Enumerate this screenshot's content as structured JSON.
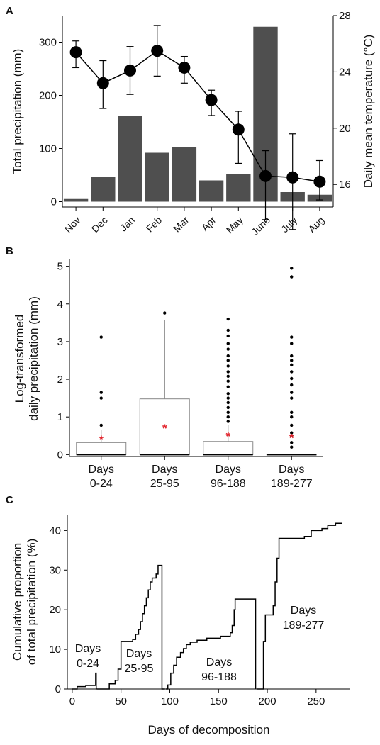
{
  "panels": {
    "a": {
      "letter": "A"
    },
    "b": {
      "letter": "B"
    },
    "c": {
      "letter": "C"
    }
  },
  "chart_data": [
    {
      "panel": "A",
      "type": "bar+line",
      "categories": [
        "Nov",
        "Dec",
        "Jan",
        "Feb",
        "Mar",
        "Apr",
        "May",
        "June",
        "July",
        "Aug"
      ],
      "bars": {
        "values": [
          5,
          47,
          162,
          92,
          102,
          40,
          52,
          329,
          18,
          13
        ],
        "color": "#4f4f4f"
      },
      "line": {
        "values": [
          25.4,
          23.2,
          24.1,
          25.5,
          24.3,
          22.0,
          19.9,
          16.6,
          16.5,
          16.2
        ],
        "err_low": [
          24.3,
          21.4,
          22.4,
          23.7,
          23.2,
          20.9,
          17.5,
          13.5,
          12.8,
          14.9
        ],
        "err_high": [
          26.2,
          24.8,
          25.8,
          27.3,
          25.1,
          22.7,
          21.2,
          18.4,
          19.6,
          17.7
        ],
        "color": "#000000"
      },
      "ylabel_left": "Total precipitation (mm)",
      "ylabel_right": "Daily mean temperature (°C)",
      "yticks_left": [
        0,
        100,
        200,
        300
      ],
      "yticks_right": [
        16,
        20,
        24,
        28
      ],
      "ylim_left": [
        -10,
        350
      ],
      "ylim_right": [
        14.4,
        28
      ]
    },
    {
      "panel": "B",
      "type": "box",
      "categories": [
        [
          "Days",
          "0-24"
        ],
        [
          "Days",
          "25-95"
        ],
        [
          "Days",
          "96-188"
        ],
        [
          "Days",
          "189-277"
        ]
      ],
      "boxes": [
        {
          "q1": 0,
          "median": 0,
          "q3": 0.32,
          "whisker_low": 0,
          "whisker_high": 0.65,
          "mean": 0.4,
          "outliers": [
            0.78,
            1.5,
            1.65,
            3.12
          ]
        },
        {
          "q1": 0,
          "median": 0,
          "q3": 1.48,
          "whisker_low": 0,
          "whisker_high": 3.57,
          "mean": 0.7,
          "outliers": [
            3.76
          ]
        },
        {
          "q1": 0,
          "median": 0,
          "q3": 0.35,
          "whisker_low": 0,
          "whisker_high": 0.78,
          "mean": 0.5,
          "outliers": [
            0.88,
            1.0,
            1.12,
            1.25,
            1.38,
            1.5,
            1.62,
            1.8,
            1.95,
            2.08,
            2.2,
            2.35,
            2.5,
            2.62,
            2.8,
            2.95,
            3.15,
            3.3,
            3.6
          ]
        },
        {
          "q1": 0,
          "median": 0,
          "q3": 0,
          "whisker_low": 0,
          "whisker_high": 0,
          "mean": 0.45,
          "outliers": [
            0.2,
            0.32,
            0.5,
            0.58,
            0.78,
            1.0,
            1.12,
            1.5,
            1.65,
            1.85,
            2.02,
            2.2,
            2.38,
            2.5,
            2.62,
            2.95,
            3.12,
            4.72,
            4.95
          ]
        }
      ],
      "ylabel_line1": "Log-transformed",
      "ylabel_line2": "daily precipitation (mm)",
      "yticks": [
        0,
        1,
        2,
        3,
        4,
        5
      ],
      "ylim": [
        -0.05,
        5.2
      ],
      "mean_marker": "*",
      "mean_color": "#e3262e"
    },
    {
      "panel": "C",
      "type": "line",
      "xlabel": "Days of decomposition",
      "ylabel_line1": "Cumulative proportion",
      "ylabel_line2": "of total precipitation (%)",
      "xticks": [
        0,
        50,
        100,
        150,
        200,
        250
      ],
      "yticks": [
        0,
        10,
        20,
        30,
        40
      ],
      "xlim": [
        -5,
        285
      ],
      "ylim": [
        0,
        44
      ],
      "series": [
        {
          "points": [
            [
              0,
              0
            ],
            [
              5,
              0
            ],
            [
              5,
              0.6
            ],
            [
              14,
              0.6
            ],
            [
              14,
              0.9
            ],
            [
              24,
              0.9
            ],
            [
              24,
              4
            ],
            [
              24.6,
              4
            ],
            [
              24.6,
              0
            ]
          ]
        },
        {
          "points": [
            [
              25,
              0
            ],
            [
              38,
              0
            ],
            [
              38,
              1.3
            ],
            [
              44,
              1.3
            ],
            [
              44,
              2.2
            ],
            [
              47,
              2.2
            ],
            [
              47,
              5
            ],
            [
              50,
              5
            ],
            [
              50,
              12
            ],
            [
              62,
              12
            ],
            [
              62,
              12.5
            ],
            [
              65,
              12.5
            ],
            [
              65,
              13.8
            ],
            [
              68,
              13.8
            ],
            [
              68,
              15
            ],
            [
              70,
              15
            ],
            [
              70,
              17
            ],
            [
              72,
              17
            ],
            [
              72,
              19
            ],
            [
              74,
              19
            ],
            [
              74,
              21
            ],
            [
              76,
              21
            ],
            [
              76,
              23
            ],
            [
              78,
              23
            ],
            [
              78,
              25
            ],
            [
              80,
              25
            ],
            [
              80,
              27
            ],
            [
              82,
              27
            ],
            [
              82,
              28
            ],
            [
              86,
              28
            ],
            [
              86,
              29
            ],
            [
              88,
              29
            ],
            [
              88,
              31.2
            ],
            [
              92,
              31.2
            ],
            [
              92,
              0
            ],
            [
              95,
              0
            ]
          ]
        },
        {
          "points": [
            [
              96,
              0
            ],
            [
              98,
              0
            ],
            [
              98,
              1
            ],
            [
              101,
              1
            ],
            [
              101,
              4
            ],
            [
              104,
              4
            ],
            [
              104,
              6
            ],
            [
              107,
              6
            ],
            [
              107,
              8
            ],
            [
              111,
              8
            ],
            [
              111,
              9.2
            ],
            [
              114,
              9.2
            ],
            [
              114,
              10.2
            ],
            [
              117,
              10.2
            ],
            [
              117,
              11.2
            ],
            [
              121,
              11.2
            ],
            [
              121,
              11.8
            ],
            [
              128,
              11.8
            ],
            [
              128,
              12.3
            ],
            [
              138,
              12.3
            ],
            [
              138,
              12.8
            ],
            [
              152,
              12.8
            ],
            [
              152,
              13.3
            ],
            [
              162,
              13.3
            ],
            [
              162,
              14.2
            ],
            [
              164,
              14.2
            ],
            [
              164,
              16
            ],
            [
              166,
              16
            ],
            [
              166,
              20
            ],
            [
              167,
              20
            ],
            [
              167,
              22.7
            ],
            [
              188,
              22.7
            ],
            [
              188,
              0
            ]
          ]
        },
        {
          "points": [
            [
              189,
              0
            ],
            [
              196,
              0
            ],
            [
              196,
              12
            ],
            [
              198,
              12
            ],
            [
              198,
              18.7
            ],
            [
              206,
              18.7
            ],
            [
              206,
              21
            ],
            [
              208,
              21
            ],
            [
              208,
              27
            ],
            [
              210,
              27
            ],
            [
              210,
              33
            ],
            [
              212,
              33
            ],
            [
              212,
              38
            ],
            [
              238,
              38
            ],
            [
              238,
              38.5
            ],
            [
              245,
              38.5
            ],
            [
              245,
              40
            ],
            [
              256,
              40
            ],
            [
              256,
              40.5
            ],
            [
              262,
              40.5
            ],
            [
              262,
              41.3
            ],
            [
              270,
              41.3
            ],
            [
              270,
              41.8
            ],
            [
              277,
              41.8
            ]
          ]
        }
      ],
      "annotations": [
        {
          "text": [
            "Days",
            "0-24"
          ]
        },
        {
          "text": [
            "Days",
            "25-95"
          ]
        },
        {
          "text": [
            "Days",
            "96-188"
          ]
        },
        {
          "text": [
            "Days",
            "189-277"
          ]
        }
      ]
    }
  ]
}
